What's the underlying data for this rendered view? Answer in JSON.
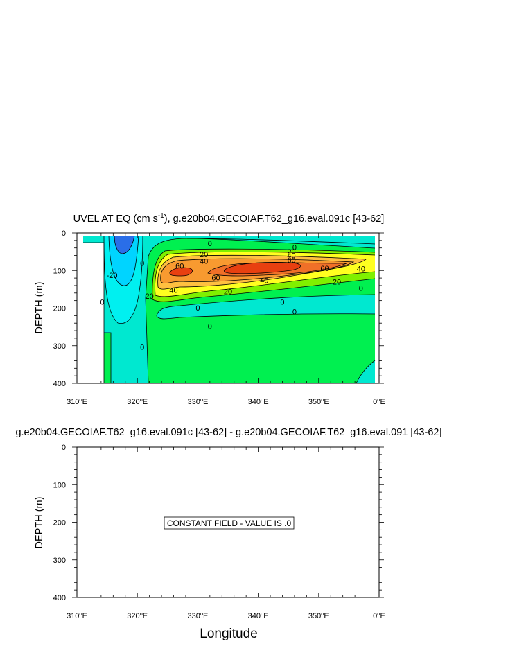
{
  "chart_data": [
    {
      "type": "contour",
      "title_main": "UVEL AT EQ (cm s",
      "title_sup": "-1",
      "title_rest": "), g.e20b04.GECOIAF.T62_g16.eval.091c [43-62]",
      "ylabel": "DEPTH (m)",
      "xlim": [
        310,
        360
      ],
      "ylim": [
        400,
        0
      ],
      "x_ticks": [
        {
          "v": 310,
          "num": "310",
          "deg": "o",
          "hem": "E"
        },
        {
          "v": 320,
          "num": "320",
          "deg": "o",
          "hem": "E"
        },
        {
          "v": 330,
          "num": "330",
          "deg": "o",
          "hem": "E"
        },
        {
          "v": 340,
          "num": "340",
          "deg": "o",
          "hem": "E"
        },
        {
          "v": 350,
          "num": "350",
          "deg": "o",
          "hem": "E"
        },
        {
          "v": 360,
          "num": "0",
          "deg": "o",
          "hem": "E"
        }
      ],
      "y_ticks": [
        {
          "v": 0,
          "label": "0"
        },
        {
          "v": 100,
          "label": "100"
        },
        {
          "v": 200,
          "label": "200"
        },
        {
          "v": 300,
          "label": "300"
        },
        {
          "v": 400,
          "label": "400"
        }
      ],
      "contour_levels": [
        -20,
        0,
        20,
        40,
        60
      ],
      "colors": {
        "strong_westward": "#2a6ee8",
        "westward": "#00d4ff",
        "weak": "#00e8d0",
        "near_zero": "#00f050",
        "east_20": "#80f000",
        "east_30": "#ffff20",
        "east_40": "#ffc040",
        "east_50": "#f89a30",
        "east_60": "#f07028",
        "core": "#e84010"
      },
      "contour_labels": [
        {
          "x": 332.0,
          "y": 28,
          "text": "0"
        },
        {
          "x": 346.0,
          "y": 38,
          "text": "0"
        },
        {
          "x": 331.0,
          "y": 57,
          "text": "20"
        },
        {
          "x": 331.0,
          "y": 75,
          "text": "40"
        },
        {
          "x": 345.5,
          "y": 50,
          "text": "20"
        },
        {
          "x": 345.5,
          "y": 60,
          "text": "40"
        },
        {
          "x": 345.5,
          "y": 72,
          "text": "60"
        },
        {
          "x": 327.0,
          "y": 88,
          "text": "60"
        },
        {
          "x": 351.0,
          "y": 94,
          "text": "60"
        },
        {
          "x": 357.0,
          "y": 95,
          "text": "40"
        },
        {
          "x": 333.0,
          "y": 119,
          "text": "60"
        },
        {
          "x": 341.0,
          "y": 126,
          "text": "40"
        },
        {
          "x": 353.0,
          "y": 130,
          "text": "20"
        },
        {
          "x": 326.0,
          "y": 152,
          "text": "40"
        },
        {
          "x": 335.0,
          "y": 156,
          "text": "20"
        },
        {
          "x": 357.0,
          "y": 147,
          "text": "0"
        },
        {
          "x": 344.0,
          "y": 183,
          "text": "0"
        },
        {
          "x": 330.0,
          "y": 199,
          "text": "0"
        },
        {
          "x": 346.0,
          "y": 209,
          "text": "0"
        },
        {
          "x": 332.0,
          "y": 248,
          "text": "0"
        },
        {
          "x": 315.8,
          "y": 112,
          "text": "-20"
        },
        {
          "x": 314.2,
          "y": 183,
          "text": "0"
        },
        {
          "x": 320.8,
          "y": 80,
          "text": "0"
        },
        {
          "x": 322.0,
          "y": 168,
          "text": "20"
        },
        {
          "x": 320.8,
          "y": 303,
          "text": "0"
        }
      ]
    },
    {
      "type": "contour",
      "title": "g.e20b04.GECOIAF.T62_g16.eval.091c [43-62] - g.e20b04.GECOIAF.T62_g16.eval.091 [43-62]",
      "ylabel": "DEPTH (m)",
      "xlabel": "Longitude",
      "xlim": [
        310,
        360
      ],
      "ylim": [
        400,
        0
      ],
      "message": "CONSTANT FIELD - VALUE IS .0"
    }
  ]
}
